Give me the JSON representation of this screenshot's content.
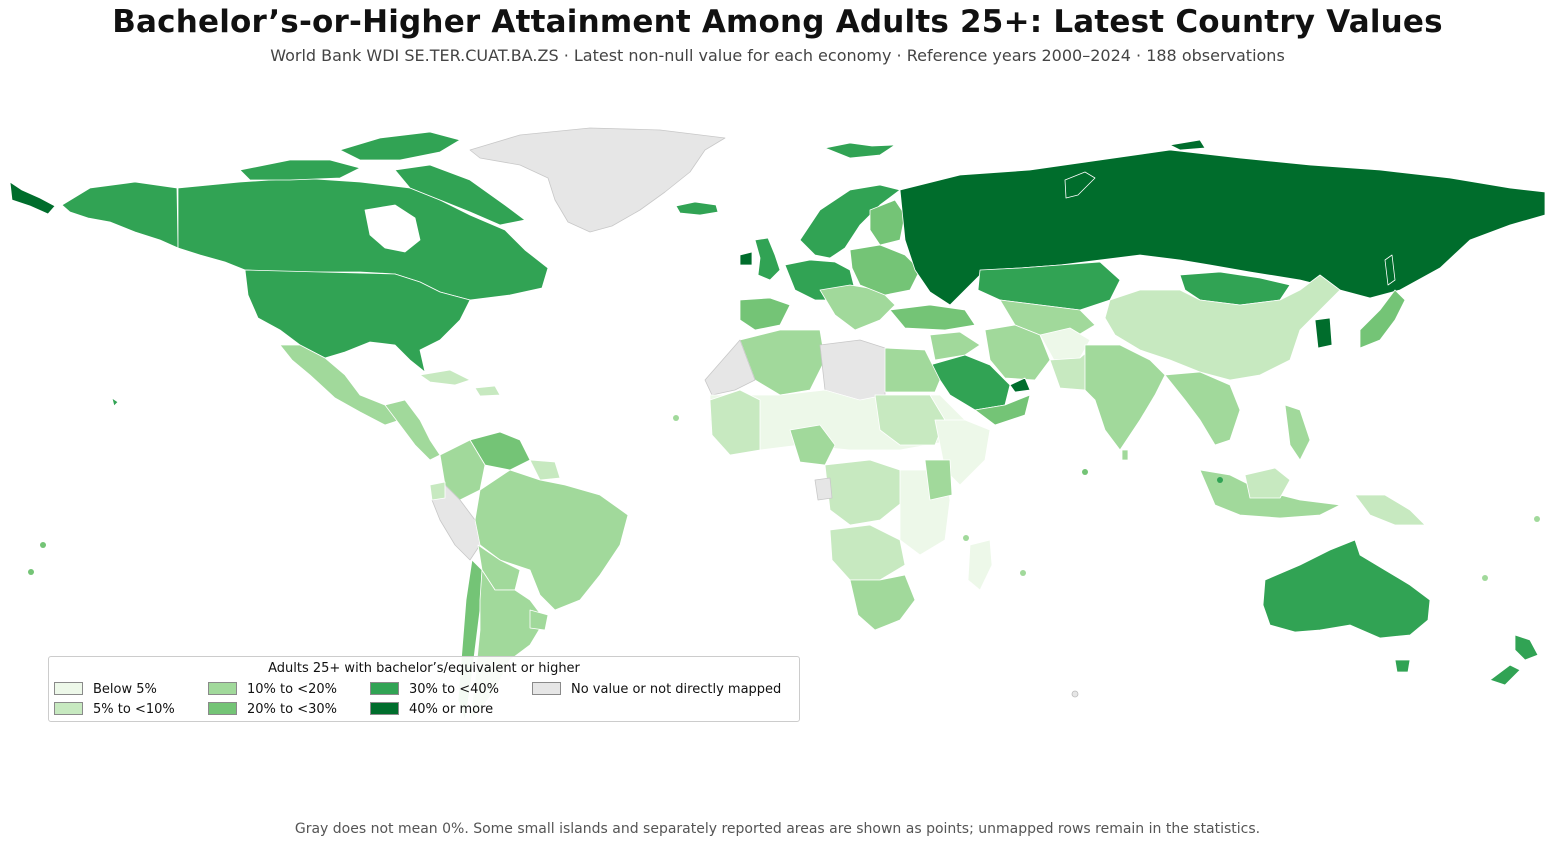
{
  "title": "Bachelor’s-or-Higher Attainment Among Adults 25+: Latest Country Values",
  "subtitle": "World Bank WDI SE.TER.CUAT.BA.ZS · Latest non-null value for each economy · Reference years 2000–2024 · 188 observations",
  "legend": {
    "title": "Adults 25+ with bachelor’s/equivalent or higher",
    "items": [
      {
        "label": "Below 5%",
        "color": "#edf8e9"
      },
      {
        "label": "5% to <10%",
        "color": "#c7e9c0"
      },
      {
        "label": "10% to <20%",
        "color": "#a1d99b"
      },
      {
        "label": "20% to <30%",
        "color": "#74c476"
      },
      {
        "label": "30% to <40%",
        "color": "#31a354"
      },
      {
        "label": "40% or more",
        "color": "#006d2c"
      },
      {
        "label": "No value or not directly mapped",
        "color": "#e6e6e6"
      }
    ]
  },
  "footnote": "Gray does not mean 0%. Some small islands and separately reported areas are shown as points; unmapped rows remain in the statistics."
}
